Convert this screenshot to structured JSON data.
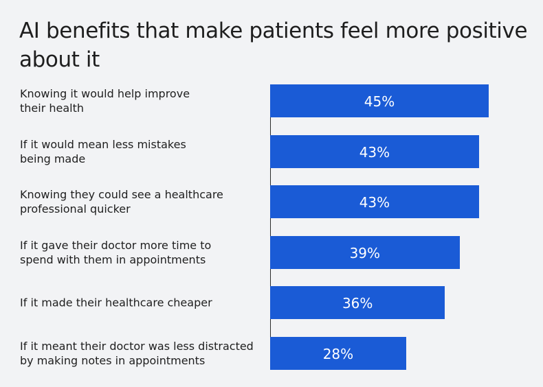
{
  "title": "AI benefits that make patients feel more positive about it",
  "colors": {
    "bar": "#1a5bd6",
    "background": "#f2f3f5",
    "text": "#1e1e1e",
    "bar_label": "#ffffff"
  },
  "chart_data": {
    "type": "bar",
    "orientation": "horizontal",
    "title": "AI benefits that make patients feel more positive about it",
    "categories": [
      "Knowing it would help improve\ntheir health",
      "If it would mean less mistakes\nbeing made",
      "Knowing they could see a healthcare\nprofessional quicker",
      "If it gave their doctor more time to\nspend with them in appointments",
      "If it made their healthcare cheaper",
      "If it meant their doctor was less distracted\nby making notes in appointments"
    ],
    "values": [
      45,
      43,
      43,
      39,
      36,
      28
    ],
    "data_labels": [
      "45%",
      "43%",
      "43%",
      "39%",
      "36%",
      "28%"
    ],
    "unit": "%",
    "xlim": [
      0,
      45
    ],
    "grid": false,
    "legend": "none"
  }
}
